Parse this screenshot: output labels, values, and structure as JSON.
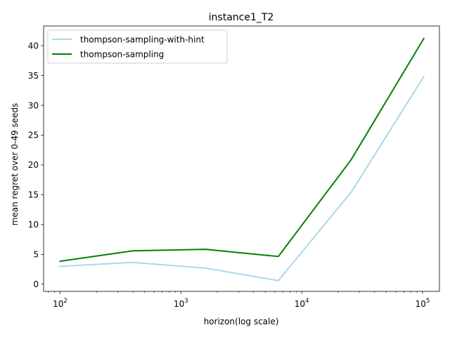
{
  "chart_data": {
    "type": "line",
    "title": "instance1_T2",
    "xlabel": "horizon(log scale)",
    "ylabel": "mean regret over 0-49 seeds",
    "xscale": "log",
    "xlim": [
      73,
      138000
    ],
    "ylim": [
      -1.2,
      43.3
    ],
    "grid": false,
    "legend_position": "top-left",
    "x": [
      100,
      400,
      1600,
      6400,
      25600,
      102400
    ],
    "x_tick_labels": [
      {
        "base": "10",
        "exp": "2",
        "value": 100
      },
      {
        "base": "10",
        "exp": "3",
        "value": 1000
      },
      {
        "base": "10",
        "exp": "4",
        "value": 10000
      },
      {
        "base": "10",
        "exp": "5",
        "value": 100000
      }
    ],
    "y_ticks": [
      0,
      5,
      10,
      15,
      20,
      25,
      30,
      35,
      40
    ],
    "series": [
      {
        "name": "thompson-sampling-with-hint",
        "color": "#add8e6",
        "values": [
          3.0,
          3.65,
          2.7,
          0.6,
          15.4,
          34.8
        ]
      },
      {
        "name": "thompson-sampling",
        "color": "#008000",
        "values": [
          3.85,
          5.6,
          5.85,
          4.65,
          20.85,
          41.2
        ]
      }
    ]
  }
}
